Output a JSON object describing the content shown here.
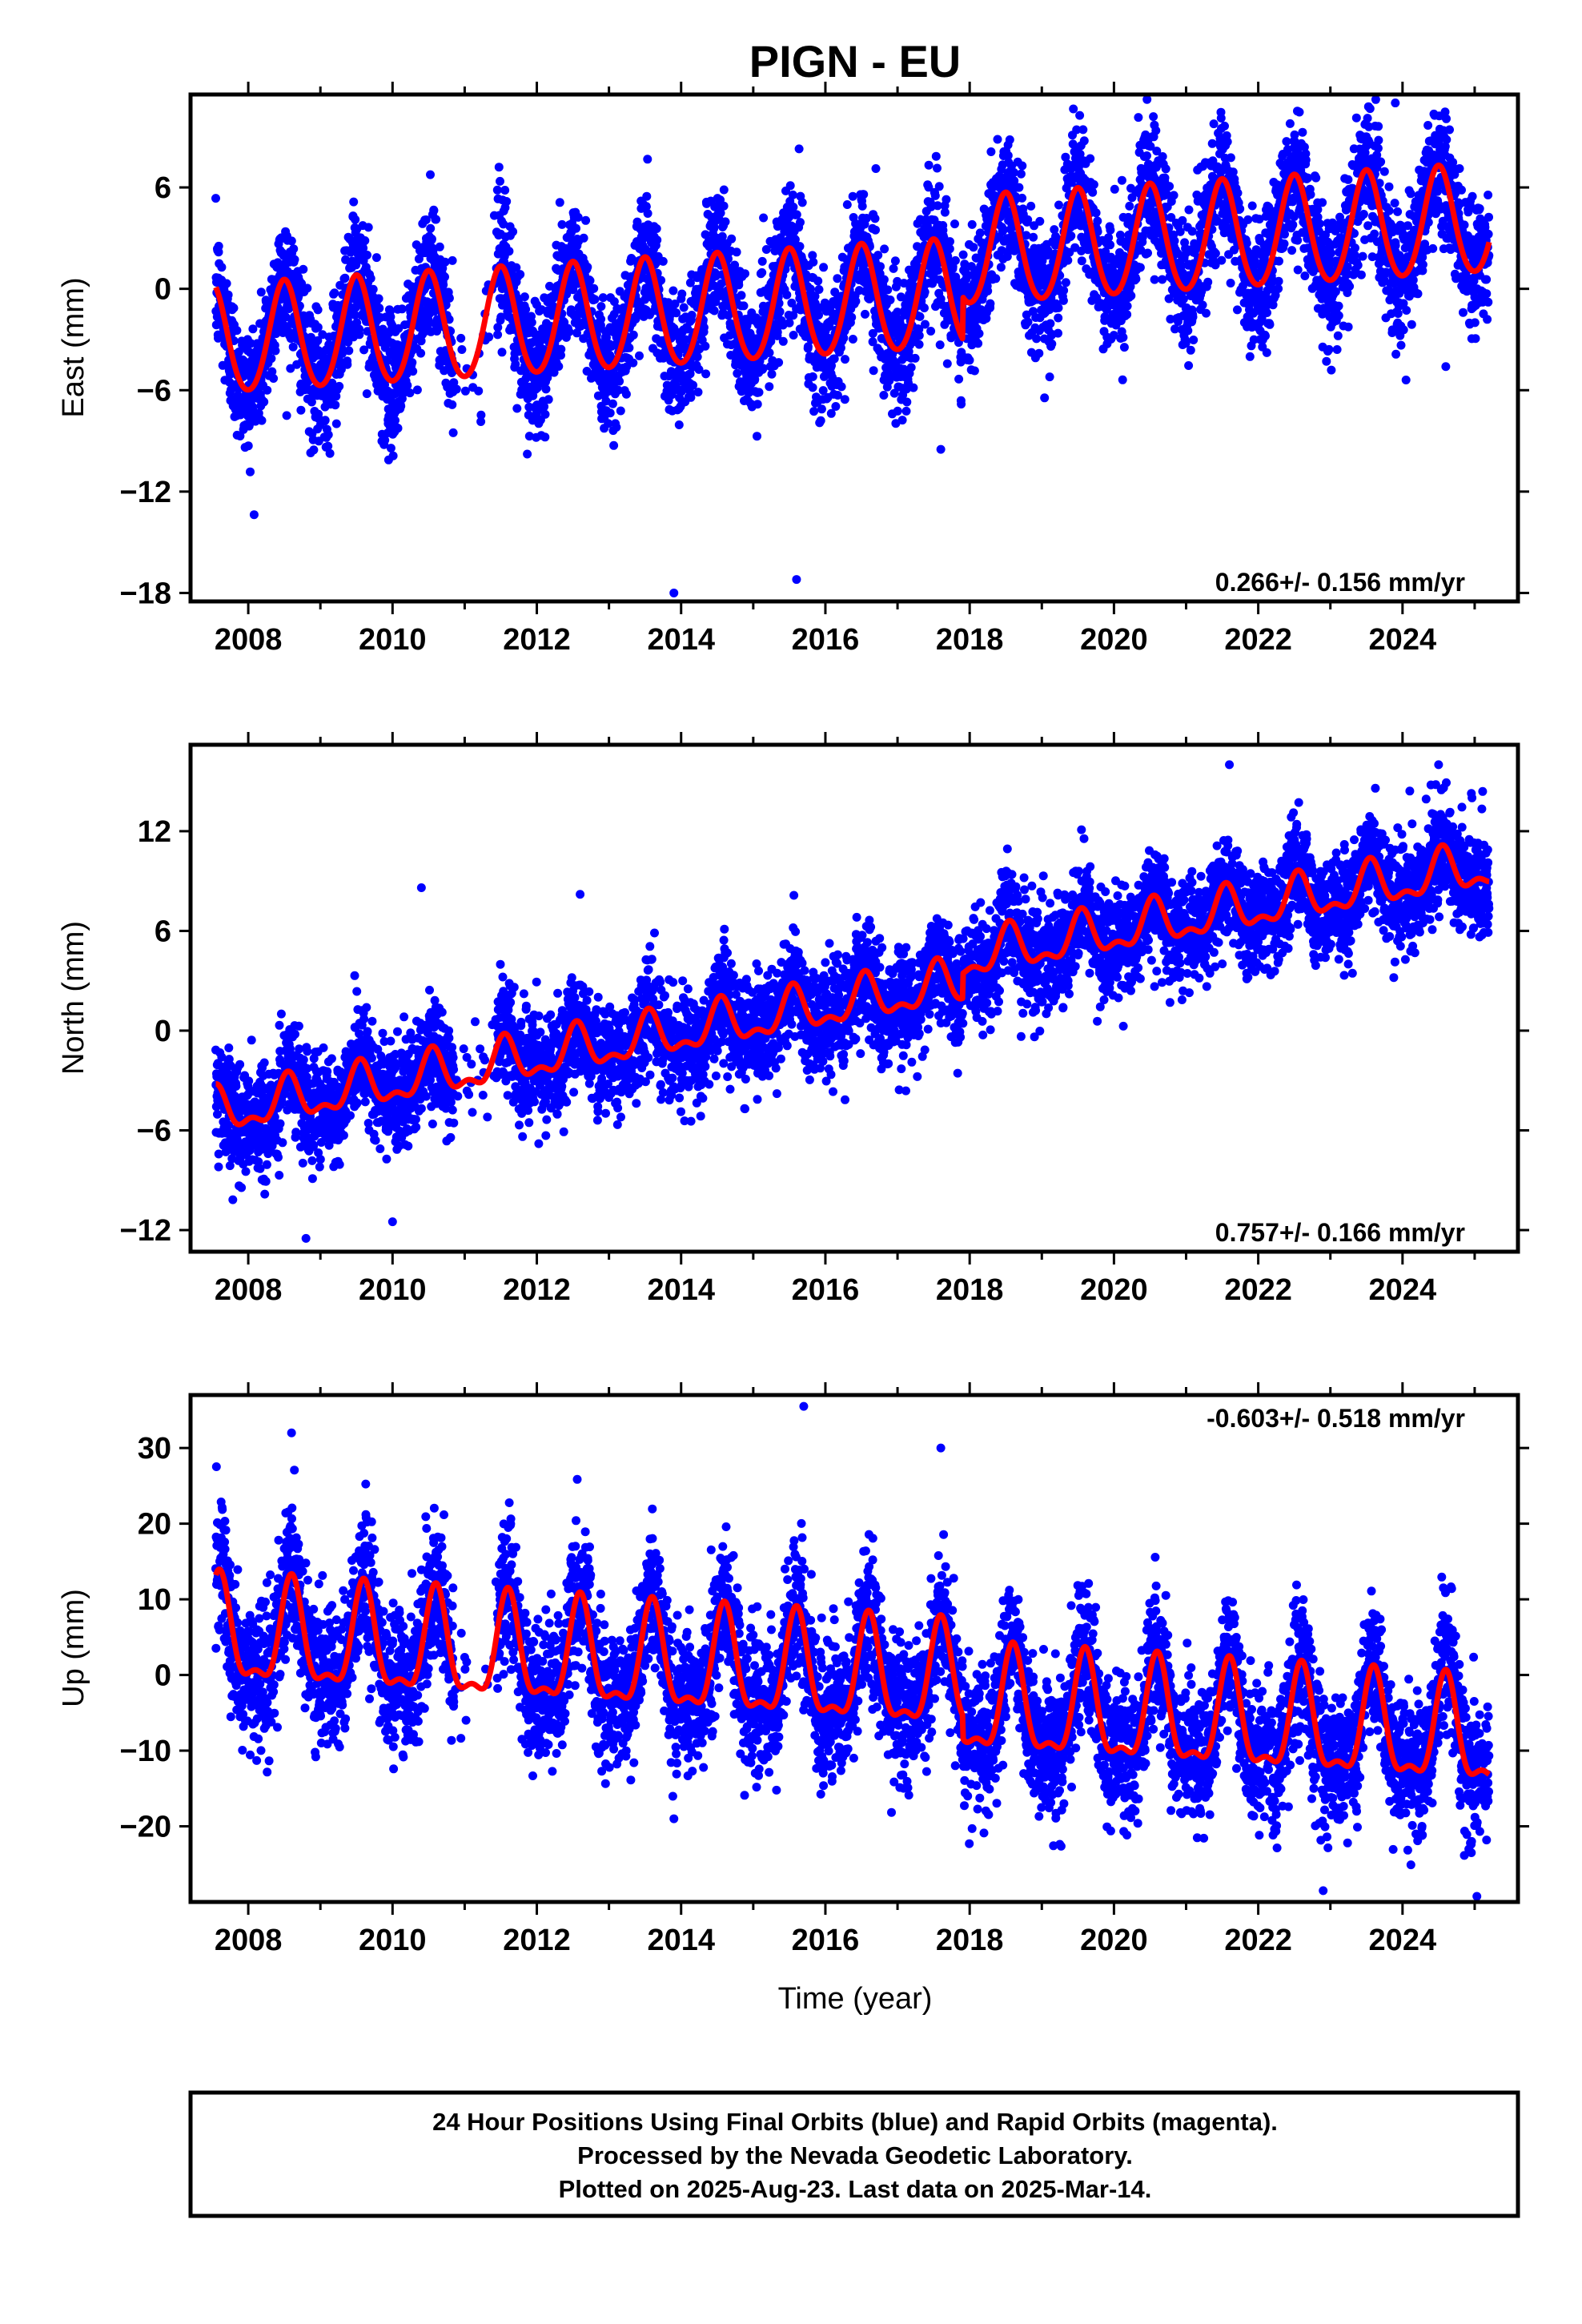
{
  "page": {
    "title": "PIGN - EU",
    "xlabel": "Time (year)",
    "footer_lines": [
      "24 Hour Positions Using Final Orbits (blue) and Rapid Orbits (magenta).",
      "Processed by the Nevada Geodetic Laboratory.",
      "Plotted on 2025-Aug-23. Last data on 2025-Mar-14."
    ]
  },
  "colors": {
    "data_points": "#0000ff",
    "model_curve": "#ff0000",
    "frame": "#000000"
  },
  "chart_data": [
    {
      "type": "scatter",
      "ylabel": "East (mm)",
      "xlim": [
        2007.2,
        2025.6
      ],
      "ylim": [
        -18.5,
        11.5
      ],
      "xticks": [
        "2008",
        "2010",
        "2012",
        "2014",
        "2016",
        "2018",
        "2020",
        "2022",
        "2024"
      ],
      "yticks": [
        6,
        0,
        -6,
        -12,
        -18
      ],
      "ytick_labels": [
        "6",
        "0",
        "−6",
        "−12",
        "−18"
      ],
      "rate_text": "0.266+/- 0.156 mm/yr",
      "rate_position": "bottom-right",
      "model": {
        "offset": -3.2,
        "slope": 0.266,
        "step_year": 2017.9,
        "step_mm": 2.5,
        "amplitude": 3.2,
        "phase_year": 2008.5,
        "semiannual_amp": 0.3
      },
      "scatter_spread_mm": 1.9,
      "outliers": [
        {
          "x": 2023.9,
          "y": 11.0
        },
        {
          "x": 2015.6,
          "y": -17.2
        },
        {
          "x": 2013.9,
          "y": -18.0
        },
        {
          "x": 2017.6,
          "y": -9.5
        },
        {
          "x": 2024.6,
          "y": -4.6
        }
      ]
    },
    {
      "type": "scatter",
      "ylabel": "North (mm)",
      "xlim": [
        2007.2,
        2025.6
      ],
      "ylim": [
        -13.3,
        17.2
      ],
      "xticks": [
        "2008",
        "2010",
        "2012",
        "2014",
        "2016",
        "2018",
        "2020",
        "2022",
        "2024"
      ],
      "yticks": [
        12,
        6,
        0,
        -6,
        -12
      ],
      "ytick_labels": [
        "12",
        "6",
        "0",
        "−6",
        "−12"
      ],
      "rate_text": "0.757+/- 0.166 mm/yr",
      "rate_position": "bottom-right",
      "model": {
        "offset": -5.0,
        "slope": 0.757,
        "step_year": 2017.9,
        "step_mm": 1.5,
        "amplitude": 1.2,
        "phase_year": 2008.55,
        "semiannual_amp": 0.6
      },
      "scatter_spread_mm": 1.6,
      "outliers": [
        {
          "x": 2010.4,
          "y": 8.6
        },
        {
          "x": 2012.6,
          "y": 8.2
        },
        {
          "x": 2021.6,
          "y": 16.0
        },
        {
          "x": 2024.5,
          "y": 16.0
        },
        {
          "x": 2010.0,
          "y": -11.5
        },
        {
          "x": 2008.8,
          "y": -12.5
        }
      ]
    },
    {
      "type": "scatter",
      "ylabel": "Up (mm)",
      "xlim": [
        2007.2,
        2025.6
      ],
      "ylim": [
        -30,
        37
      ],
      "xticks": [
        "2008",
        "2010",
        "2012",
        "2014",
        "2016",
        "2018",
        "2020",
        "2022",
        "2024"
      ],
      "yticks": [
        30,
        20,
        10,
        0,
        -10,
        -20
      ],
      "ytick_labels": [
        "30",
        "20",
        "10",
        "0",
        "−10",
        "−20"
      ],
      "rate_text": "-0.603+/- 0.518 mm/yr",
      "rate_position": "top-right",
      "model": {
        "offset": 5.0,
        "slope": -0.603,
        "step_year": 2017.9,
        "step_mm": -3.0,
        "amplitude": 6.5,
        "phase_year": 2008.6,
        "semiannual_amp": 2.5
      },
      "scatter_spread_mm": 4.5,
      "outliers": [
        {
          "x": 2015.7,
          "y": 35.5
        },
        {
          "x": 2008.6,
          "y": 32.0
        },
        {
          "x": 2017.6,
          "y": 30.0
        },
        {
          "x": 2022.9,
          "y": -28.5
        },
        {
          "x": 2013.9,
          "y": -19.0
        }
      ]
    }
  ]
}
